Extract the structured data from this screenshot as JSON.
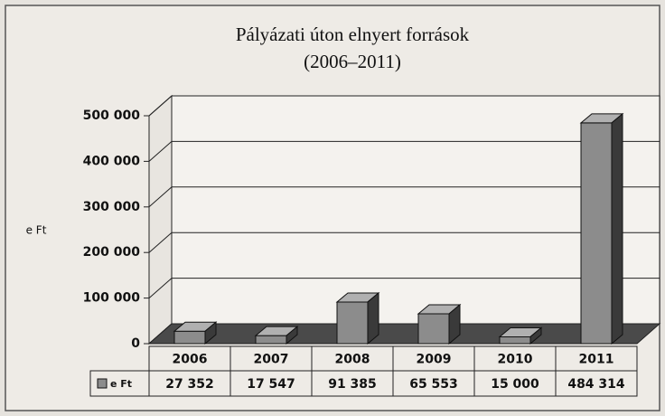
{
  "chart_data": {
    "type": "bar3d",
    "title": "Pályázati úton elnyert források",
    "subtitle": "(2006–2011)",
    "ylabel": "e Ft",
    "categories": [
      "2006",
      "2007",
      "2008",
      "2009",
      "2010",
      "2011"
    ],
    "series": [
      {
        "name": "e Ft",
        "color": "#8c8c8c",
        "values": [
          27352,
          17547,
          91385,
          65553,
          15000,
          484314
        ],
        "value_labels": [
          "27 352",
          "17 547",
          "91 385",
          "65 553",
          "15 000",
          "484 314"
        ]
      }
    ],
    "ylim": [
      0,
      500000
    ],
    "yticks": [
      0,
      {
        "value": 100000,
        "label": "100 000"
      },
      {
        "value": 200000,
        "label": "200 000"
      },
      {
        "value": 300000,
        "label": "300 000"
      },
      {
        "value": 400000,
        "label": "400 000"
      },
      {
        "value": 500000,
        "label": "500 000"
      }
    ],
    "grid": true
  }
}
